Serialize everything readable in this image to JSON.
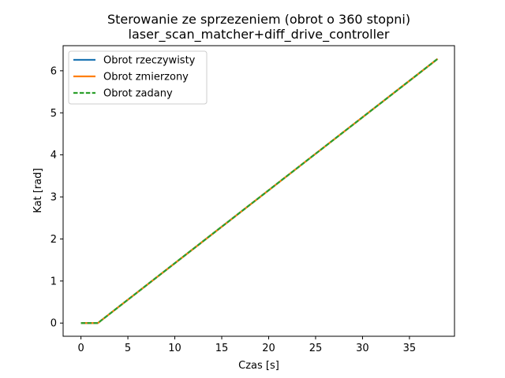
{
  "chart_data": {
    "type": "line",
    "title_line1": "Sterowanie ze sprzezeniem (obrot o 360 stopni)",
    "title_line2": "laser_scan_matcher+diff_drive_controller",
    "xlabel": "Czas [s]",
    "ylabel": "Kat [rad]",
    "xlim": [
      -1.9,
      39.8
    ],
    "ylim": [
      -0.314,
      6.597
    ],
    "xticks": [
      0,
      5,
      10,
      15,
      20,
      25,
      30,
      35
    ],
    "yticks": [
      0,
      1,
      2,
      3,
      4,
      5,
      6
    ],
    "grid": false,
    "legend_position": "upper-left",
    "series": [
      {
        "name": "Obrot rzeczywisty",
        "color": "#1f77b4",
        "style": "solid",
        "x": [
          0,
          1.8,
          38
        ],
        "y": [
          0,
          0,
          6.283
        ]
      },
      {
        "name": "Obrot zmierzony",
        "color": "#ff7f0e",
        "style": "solid",
        "x": [
          0,
          1.8,
          38
        ],
        "y": [
          0,
          0,
          6.283
        ]
      },
      {
        "name": "Obrot zadany",
        "color": "#2ca02c",
        "style": "dashed",
        "x": [
          0,
          1.8,
          38
        ],
        "y": [
          0,
          0,
          6.283
        ]
      }
    ]
  }
}
